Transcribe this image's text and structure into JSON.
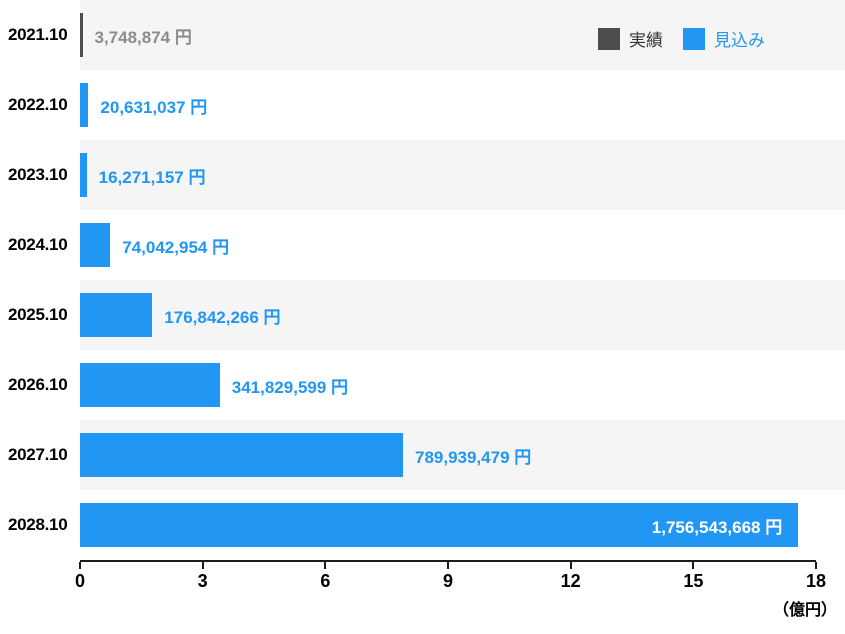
{
  "chart_data": {
    "type": "bar",
    "orientation": "horizontal",
    "title": "",
    "unit_label": "（億円）",
    "x_ticks": [
      0,
      3,
      6,
      9,
      12,
      15,
      18
    ],
    "x_axis_unit": "億円",
    "x_max_yen": 1800000000,
    "legend": [
      {
        "name": "実績",
        "color": "#4d4d4d"
      },
      {
        "name": "見込み",
        "color": "#2196f3"
      }
    ],
    "colors": {
      "actual_bar": "#4d4d4d",
      "forecast_bar": "#2196f3",
      "actual_label_text": "#8c8c8c",
      "forecast_label_text": "#2196f3",
      "inside_label_text": "#ffffff",
      "row_stripe": "#f5f5f5",
      "axis": "#1a1a1a"
    },
    "rows": [
      {
        "category": "2021.10",
        "value": 3748874,
        "label": "3,748,874 円",
        "series": "実績"
      },
      {
        "category": "2022.10",
        "value": 20631037,
        "label": "20,631,037 円",
        "series": "見込み"
      },
      {
        "category": "2023.10",
        "value": 16271157,
        "label": "16,271,157 円",
        "series": "見込み"
      },
      {
        "category": "2024.10",
        "value": 74042954,
        "label": "74,042,954 円",
        "series": "見込み"
      },
      {
        "category": "2025.10",
        "value": 176842266,
        "label": "176,842,266 円",
        "series": "見込み"
      },
      {
        "category": "2026.10",
        "value": 341829599,
        "label": "341,829,599 円",
        "series": "見込み"
      },
      {
        "category": "2027.10",
        "value": 789939479,
        "label": "789,939,479 円",
        "series": "見込み"
      },
      {
        "category": "2028.10",
        "value": 1756543668,
        "label": "1,756,543,668 円",
        "series": "見込み",
        "label_inside": true
      }
    ]
  }
}
